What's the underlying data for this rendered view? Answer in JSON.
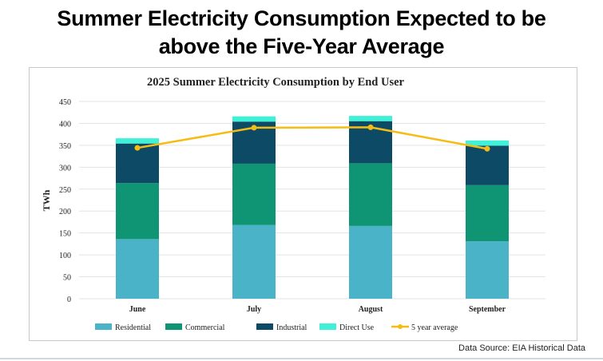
{
  "headline": {
    "line1": "Summer Electricity Consumption Expected to be",
    "line2": "above the Five-Year Average"
  },
  "source": "Data Source: EIA Historical Data",
  "colors": {
    "residential": "#4bb3c7",
    "commercial": "#0f9474",
    "industrial": "#0c4a66",
    "direct_use": "#3ff1d6",
    "five_year_average": "#f5bc14"
  },
  "chart_data": {
    "type": "bar",
    "stacked": true,
    "title": "2025 Summer Electricity Consumption by End User",
    "xlabel": "",
    "ylabel": "TWh",
    "ylim": [
      0,
      450
    ],
    "yticks": [
      "0",
      "50",
      "100",
      "150",
      "200",
      "250",
      "300",
      "350",
      "400",
      "450"
    ],
    "categories": [
      "June",
      "July",
      "August",
      "September"
    ],
    "series": [
      {
        "name": "Residential",
        "values": [
          136,
          168,
          166,
          131
        ]
      },
      {
        "name": "Commercial",
        "values": [
          128,
          140,
          143,
          128
        ]
      },
      {
        "name": "Industrial",
        "values": [
          90,
          96,
          96,
          90
        ]
      },
      {
        "name": "Direct Use",
        "values": [
          12,
          12,
          12,
          12
        ]
      }
    ],
    "line_series": {
      "name": "5 year average",
      "values": [
        344,
        390,
        391,
        342
      ]
    },
    "legend_position": "bottom",
    "grid": true
  }
}
